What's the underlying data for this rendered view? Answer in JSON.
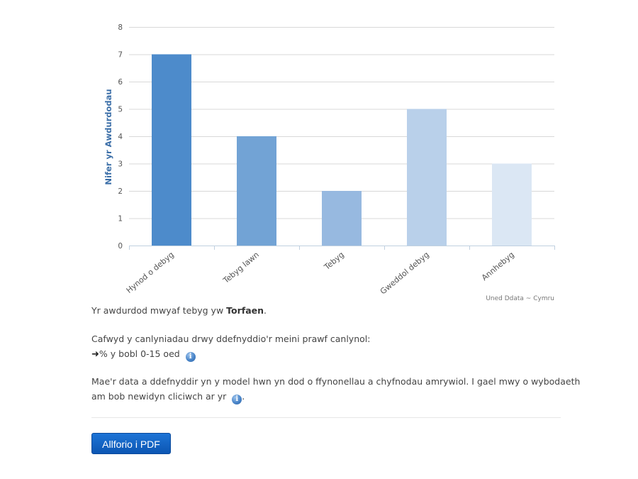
{
  "chart_data": {
    "type": "bar",
    "categories": [
      "Hynod o debyg",
      "Tebyg Iawn",
      "Tebyg",
      "Gweddol debyg",
      "Annhebyg"
    ],
    "values": [
      7,
      4,
      2,
      5,
      3
    ],
    "colors": [
      "#4d8bcb",
      "#72a3d5",
      "#97b9e0",
      "#b9d0ea",
      "#dbe7f4"
    ],
    "title": "",
    "xlabel": "",
    "ylabel": "Nifer yr Awdurdodau",
    "ylim": [
      0,
      8
    ],
    "yticks": [
      0,
      1,
      2,
      3,
      4,
      5,
      6,
      7,
      8
    ],
    "grid": true,
    "credit": "Uned Ddata ~ Cymru"
  },
  "text": {
    "result_prefix": "Yr awdurdod mwyaf tebyg yw ",
    "result_name": "Torfaen",
    "result_suffix": ".",
    "criteria_intro": "Cafwyd y canlyniadau drwy ddefnyddio'r meini prawf canlynol:",
    "criteria_item": "% y bobl 0-15 oed",
    "data_note_line1": "Mae'r data a ddefnyddir yn y model hwn yn dod o ffynonellau a chyfnodau amrywiol. I gael mwy o wybodaeth",
    "data_note_line2": "am bob newidyn cliciwch ar yr",
    "data_note_end": "."
  },
  "icons": {
    "info": "info-icon",
    "arrow": "arrow-right-icon"
  },
  "buttons": {
    "export_pdf": "Allforio i PDF"
  }
}
